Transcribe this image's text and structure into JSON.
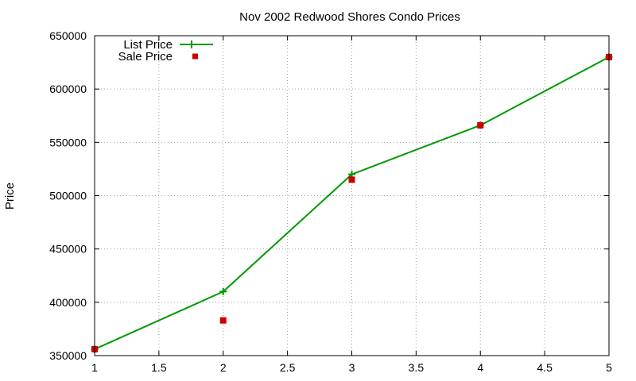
{
  "chart_data": {
    "type": "line",
    "title": "Nov 2002 Redwood Shores Condo Prices",
    "xlabel": "",
    "ylabel": "Price",
    "xlim": [
      1,
      5
    ],
    "ylim": [
      350000,
      650000
    ],
    "xticks": [
      1,
      1.5,
      2,
      2.5,
      3,
      3.5,
      4,
      4.5,
      5
    ],
    "xtick_labels": [
      "1",
      "1.5",
      "2",
      "2.5",
      "3",
      "3.5",
      "4",
      "4.5",
      "5"
    ],
    "yticks": [
      350000,
      400000,
      450000,
      500000,
      550000,
      600000,
      650000
    ],
    "ytick_labels": [
      "350000",
      "400000",
      "450000",
      "500000",
      "550000",
      "600000",
      "650000"
    ],
    "grid": true,
    "legend_position": "top-left",
    "series": [
      {
        "name": "List Price",
        "style": "lines+points",
        "marker": "plus",
        "color": "#009900",
        "x": [
          1,
          2,
          3,
          4,
          5
        ],
        "y": [
          356000,
          410000,
          520000,
          566000,
          630000
        ]
      },
      {
        "name": "Sale Price",
        "style": "points",
        "marker": "square",
        "color": "#cc0000",
        "x": [
          1,
          2,
          3,
          4,
          5
        ],
        "y": [
          356000,
          383000,
          515000,
          566000,
          630000
        ]
      }
    ]
  }
}
